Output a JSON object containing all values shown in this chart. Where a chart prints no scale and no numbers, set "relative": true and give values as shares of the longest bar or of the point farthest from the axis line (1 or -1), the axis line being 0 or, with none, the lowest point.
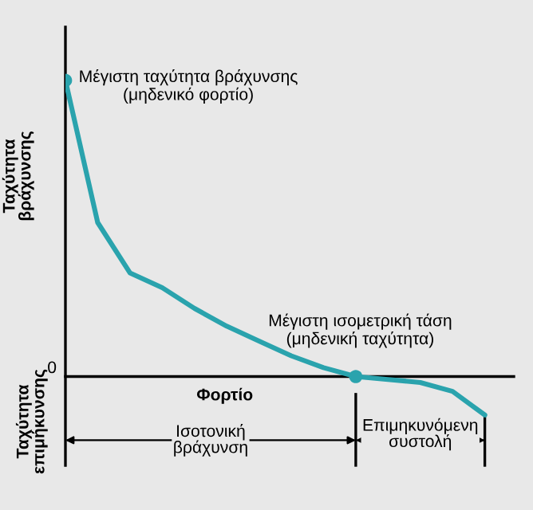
{
  "chart_data": {
    "type": "line",
    "relative": true,
    "xlabel": "Φορτίο",
    "ylabel": "Ταχύτητα\nβράχυνσης",
    "categories": [
      null,
      null,
      null,
      null,
      null,
      null,
      null,
      null,
      null,
      null,
      null,
      null,
      null,
      null
    ],
    "series": [
      {
        "color": "#2aa3ad",
        "values": [
          1,
          0.52,
          0.35,
          0.3,
          0.23,
          0.17,
          0.12,
          0.07,
          0.03,
          0,
          -0.01,
          -0.02,
          -0.05,
          -0.13
        ]
      }
    ],
    "grid": false,
    "annotations": [
      "Μέγιστη ταχύτητα βράχυνσης\n(μηδενικό φορτίο)",
      "Μέγιστη ισομετρική τάση\n(μηδενική ταχύτητα)",
      "Ισοτονική\nβράχυνση",
      "Επιμηκυνόμενη\nσυστολή",
      "Ταχύτητα\nεπιμήκυνσης",
      "0"
    ]
  }
}
